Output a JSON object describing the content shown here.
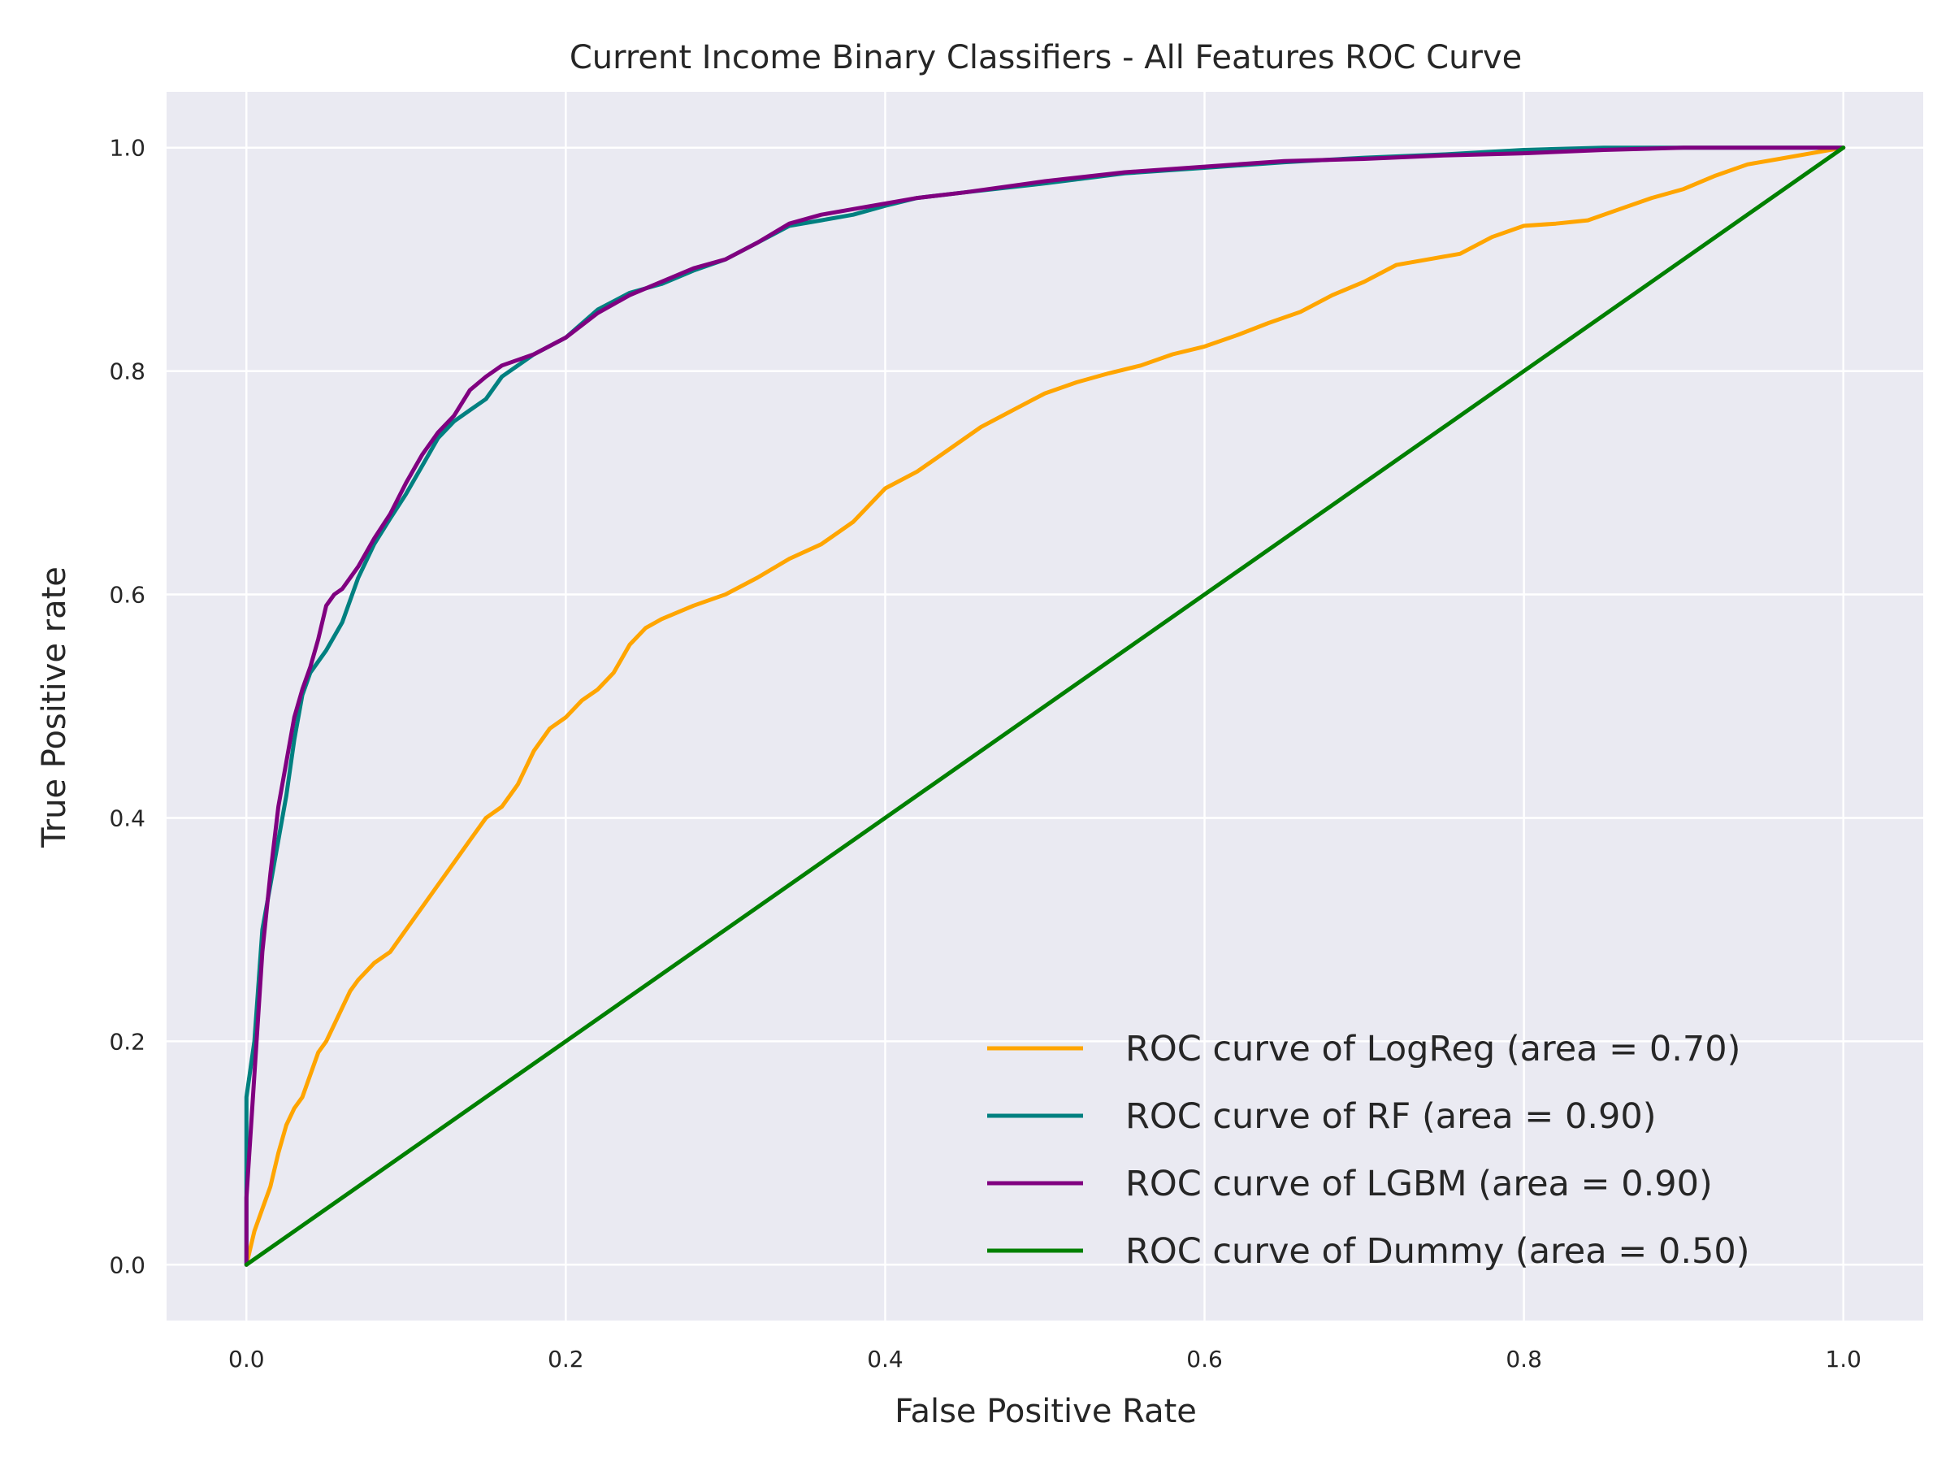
{
  "chart_data": {
    "type": "line",
    "title": "Current Income Binary Classifiers - All Features ROC Curve",
    "xlabel": "False Positive Rate",
    "ylabel": "True Positive rate",
    "xlim": [
      -0.05,
      1.05
    ],
    "ylim": [
      -0.05,
      1.05
    ],
    "xticks": [
      "0.0",
      "0.2",
      "0.4",
      "0.6",
      "0.8",
      "1.0"
    ],
    "yticks": [
      "0.0",
      "0.2",
      "0.4",
      "0.6",
      "0.8",
      "1.0"
    ],
    "grid": true,
    "background": "#eaeaf2",
    "legend_position": "lower-right",
    "series": [
      {
        "name": "ROC curve of LogReg (area = 0.70)",
        "color": "#ffa500",
        "points": [
          [
            0,
            0
          ],
          [
            0.005,
            0.03
          ],
          [
            0.01,
            0.05
          ],
          [
            0.015,
            0.07
          ],
          [
            0.02,
            0.1
          ],
          [
            0.025,
            0.125
          ],
          [
            0.03,
            0.14
          ],
          [
            0.035,
            0.15
          ],
          [
            0.04,
            0.17
          ],
          [
            0.045,
            0.19
          ],
          [
            0.05,
            0.2
          ],
          [
            0.055,
            0.215
          ],
          [
            0.06,
            0.23
          ],
          [
            0.065,
            0.245
          ],
          [
            0.07,
            0.255
          ],
          [
            0.08,
            0.27
          ],
          [
            0.09,
            0.28
          ],
          [
            0.1,
            0.3
          ],
          [
            0.11,
            0.32
          ],
          [
            0.12,
            0.34
          ],
          [
            0.13,
            0.36
          ],
          [
            0.14,
            0.38
          ],
          [
            0.15,
            0.4
          ],
          [
            0.16,
            0.41
          ],
          [
            0.17,
            0.43
          ],
          [
            0.18,
            0.46
          ],
          [
            0.19,
            0.48
          ],
          [
            0.2,
            0.49
          ],
          [
            0.21,
            0.505
          ],
          [
            0.22,
            0.515
          ],
          [
            0.23,
            0.53
          ],
          [
            0.24,
            0.555
          ],
          [
            0.25,
            0.57
          ],
          [
            0.26,
            0.578
          ],
          [
            0.28,
            0.59
          ],
          [
            0.3,
            0.6
          ],
          [
            0.32,
            0.615
          ],
          [
            0.34,
            0.632
          ],
          [
            0.36,
            0.645
          ],
          [
            0.38,
            0.665
          ],
          [
            0.4,
            0.695
          ],
          [
            0.42,
            0.71
          ],
          [
            0.44,
            0.73
          ],
          [
            0.46,
            0.75
          ],
          [
            0.48,
            0.765
          ],
          [
            0.5,
            0.78
          ],
          [
            0.52,
            0.79
          ],
          [
            0.54,
            0.798
          ],
          [
            0.56,
            0.805
          ],
          [
            0.58,
            0.815
          ],
          [
            0.6,
            0.822
          ],
          [
            0.62,
            0.832
          ],
          [
            0.64,
            0.843
          ],
          [
            0.66,
            0.853
          ],
          [
            0.68,
            0.868
          ],
          [
            0.7,
            0.88
          ],
          [
            0.72,
            0.895
          ],
          [
            0.74,
            0.9
          ],
          [
            0.76,
            0.905
          ],
          [
            0.78,
            0.92
          ],
          [
            0.8,
            0.93
          ],
          [
            0.82,
            0.932
          ],
          [
            0.84,
            0.935
          ],
          [
            0.86,
            0.945
          ],
          [
            0.88,
            0.955
          ],
          [
            0.9,
            0.963
          ],
          [
            0.92,
            0.975
          ],
          [
            0.94,
            0.985
          ],
          [
            0.96,
            0.99
          ],
          [
            0.98,
            0.995
          ],
          [
            1,
            1
          ]
        ]
      },
      {
        "name": "ROC curve of RF (area = 0.90)",
        "color": "#008080",
        "points": [
          [
            0,
            0
          ],
          [
            0,
            0.15
          ],
          [
            0.005,
            0.2
          ],
          [
            0.01,
            0.3
          ],
          [
            0.015,
            0.34
          ],
          [
            0.02,
            0.38
          ],
          [
            0.025,
            0.42
          ],
          [
            0.03,
            0.47
          ],
          [
            0.035,
            0.51
          ],
          [
            0.04,
            0.53
          ],
          [
            0.045,
            0.54
          ],
          [
            0.05,
            0.55
          ],
          [
            0.06,
            0.575
          ],
          [
            0.07,
            0.615
          ],
          [
            0.08,
            0.645
          ],
          [
            0.09,
            0.668
          ],
          [
            0.1,
            0.69
          ],
          [
            0.11,
            0.715
          ],
          [
            0.12,
            0.74
          ],
          [
            0.13,
            0.755
          ],
          [
            0.14,
            0.765
          ],
          [
            0.15,
            0.775
          ],
          [
            0.16,
            0.795
          ],
          [
            0.18,
            0.815
          ],
          [
            0.2,
            0.83
          ],
          [
            0.22,
            0.855
          ],
          [
            0.24,
            0.87
          ],
          [
            0.26,
            0.878
          ],
          [
            0.28,
            0.89
          ],
          [
            0.3,
            0.9
          ],
          [
            0.32,
            0.915
          ],
          [
            0.34,
            0.93
          ],
          [
            0.36,
            0.935
          ],
          [
            0.38,
            0.94
          ],
          [
            0.4,
            0.948
          ],
          [
            0.42,
            0.955
          ],
          [
            0.45,
            0.96
          ],
          [
            0.5,
            0.968
          ],
          [
            0.55,
            0.977
          ],
          [
            0.6,
            0.982
          ],
          [
            0.65,
            0.987
          ],
          [
            0.7,
            0.991
          ],
          [
            0.75,
            0.994
          ],
          [
            0.8,
            0.998
          ],
          [
            0.85,
            1
          ],
          [
            0.9,
            1
          ],
          [
            1,
            1
          ]
        ]
      },
      {
        "name": "ROC curve of LGBM (area = 0.90)",
        "color": "#800080",
        "points": [
          [
            0,
            0
          ],
          [
            0,
            0.06
          ],
          [
            0.005,
            0.17
          ],
          [
            0.01,
            0.28
          ],
          [
            0.015,
            0.35
          ],
          [
            0.02,
            0.41
          ],
          [
            0.025,
            0.45
          ],
          [
            0.03,
            0.49
          ],
          [
            0.035,
            0.515
          ],
          [
            0.04,
            0.535
          ],
          [
            0.045,
            0.56
          ],
          [
            0.05,
            0.59
          ],
          [
            0.055,
            0.6
          ],
          [
            0.06,
            0.605
          ],
          [
            0.07,
            0.625
          ],
          [
            0.08,
            0.65
          ],
          [
            0.09,
            0.672
          ],
          [
            0.1,
            0.7
          ],
          [
            0.11,
            0.725
          ],
          [
            0.12,
            0.745
          ],
          [
            0.13,
            0.76
          ],
          [
            0.14,
            0.783
          ],
          [
            0.15,
            0.795
          ],
          [
            0.16,
            0.805
          ],
          [
            0.18,
            0.815
          ],
          [
            0.2,
            0.83
          ],
          [
            0.22,
            0.852
          ],
          [
            0.24,
            0.868
          ],
          [
            0.26,
            0.88
          ],
          [
            0.28,
            0.892
          ],
          [
            0.3,
            0.9
          ],
          [
            0.32,
            0.915
          ],
          [
            0.34,
            0.932
          ],
          [
            0.36,
            0.94
          ],
          [
            0.38,
            0.945
          ],
          [
            0.4,
            0.95
          ],
          [
            0.42,
            0.955
          ],
          [
            0.45,
            0.96
          ],
          [
            0.5,
            0.97
          ],
          [
            0.55,
            0.978
          ],
          [
            0.6,
            0.983
          ],
          [
            0.65,
            0.988
          ],
          [
            0.7,
            0.99
          ],
          [
            0.75,
            0.993
          ],
          [
            0.8,
            0.995
          ],
          [
            0.85,
            0.998
          ],
          [
            0.9,
            1
          ],
          [
            1,
            1
          ]
        ]
      },
      {
        "name": "ROC curve of Dummy (area = 0.50)",
        "color": "#008000",
        "points": [
          [
            0,
            0
          ],
          [
            1,
            1
          ]
        ]
      }
    ]
  }
}
